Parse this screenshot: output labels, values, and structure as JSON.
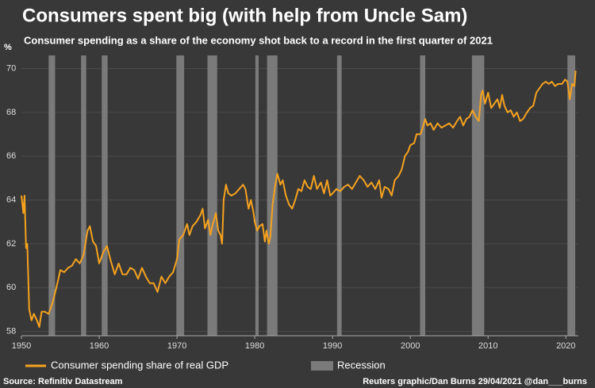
{
  "chart_data": {
    "type": "line",
    "title": "Consumers spent big (with help from Uncle Sam)",
    "subtitle": "Consumer spending as a share of the economy shot back to a record in the first quarter of 2021",
    "y_unit": "%",
    "source": "Source: Refinitiv Datastream",
    "credit": "Reuters graphic/Dan Burns 29/04/2021 @dan___burns",
    "recession_label": "Recession",
    "recession_color": "#7a7a7a",
    "recessions": [
      [
        1953.5,
        1954.33
      ],
      [
        1957.67,
        1958.33
      ],
      [
        1960.33,
        1961.08
      ],
      [
        1969.92,
        1970.92
      ],
      [
        1973.92,
        1975.17
      ],
      [
        1980.08,
        1980.5
      ],
      [
        1981.58,
        1982.92
      ],
      [
        1990.58,
        1991.17
      ],
      [
        2001.25,
        2001.92
      ],
      [
        2007.92,
        2009.5
      ],
      [
        2020.2,
        2021.2
      ]
    ],
    "xlim": [
      1950,
      2021.6
    ],
    "xticks": [
      1950,
      1960,
      1970,
      1980,
      1990,
      2000,
      2010,
      2020
    ],
    "ylim": [
      57.8,
      70.6
    ],
    "yticks": [
      58,
      60,
      62,
      64,
      66,
      68,
      70
    ],
    "grid": true,
    "x": [
      1950.0,
      1950.25,
      1950.4,
      1950.6,
      1950.75,
      1951.0,
      1951.3,
      1951.6,
      1952.0,
      1952.3,
      1952.6,
      1953.0,
      1953.5,
      1954.0,
      1954.5,
      1955.0,
      1955.5,
      1956.0,
      1956.5,
      1957.0,
      1957.5,
      1958.0,
      1958.5,
      1958.8,
      1959.2,
      1959.6,
      1960.0,
      1960.5,
      1961.0,
      1961.5,
      1962.0,
      1962.5,
      1963.0,
      1963.5,
      1964.0,
      1964.5,
      1965.0,
      1965.5,
      1966.0,
      1966.5,
      1967.0,
      1967.5,
      1968.0,
      1968.5,
      1969.0,
      1969.5,
      1970.0,
      1970.3,
      1970.8,
      1971.3,
      1971.6,
      1972.0,
      1972.5,
      1973.0,
      1973.3,
      1973.6,
      1974.0,
      1974.3,
      1974.6,
      1975.0,
      1975.3,
      1975.6,
      1975.8,
      1976.0,
      1976.3,
      1976.6,
      1977.0,
      1977.5,
      1978.0,
      1978.5,
      1978.8,
      1979.2,
      1979.5,
      1979.8,
      1980.0,
      1980.3,
      1980.6,
      1981.0,
      1981.3,
      1981.5,
      1981.8,
      1982.0,
      1982.3,
      1982.6,
      1982.9,
      1983.3,
      1983.6,
      1984.0,
      1984.4,
      1984.8,
      1985.2,
      1985.6,
      1986.0,
      1986.4,
      1986.8,
      1987.2,
      1987.6,
      1988.0,
      1988.5,
      1988.9,
      1989.3,
      1989.7,
      1990.0,
      1990.5,
      1991.0,
      1991.5,
      1992.0,
      1992.5,
      1993.0,
      1993.5,
      1994.0,
      1994.5,
      1995.0,
      1995.5,
      1996.0,
      1996.3,
      1996.7,
      1997.2,
      1997.6,
      1998.0,
      1998.5,
      1998.9,
      1999.3,
      1999.7,
      2000.0,
      2000.5,
      2000.8,
      2001.3,
      2001.6,
      2001.9,
      2002.2,
      2002.6,
      2003.0,
      2003.5,
      2004.0,
      2004.5,
      2005.0,
      2005.5,
      2006.0,
      2006.4,
      2006.8,
      2007.2,
      2007.6,
      2008.0,
      2008.4,
      2008.8,
      2009.1,
      2009.3,
      2009.6,
      2010.0,
      2010.4,
      2010.8,
      2011.2,
      2011.5,
      2011.8,
      2012.1,
      2012.5,
      2012.9,
      2013.3,
      2013.7,
      2014.1,
      2014.5,
      2015.0,
      2015.4,
      2015.8,
      2016.2,
      2016.6,
      2017.0,
      2017.4,
      2017.8,
      2018.2,
      2018.6,
      2019.0,
      2019.5,
      2019.9,
      2020.2,
      2020.5,
      2020.8,
      2021.1,
      2021.25
    ],
    "series": [
      {
        "name": "Consumer spending share of real GDP",
        "color": "#f5a21f",
        "values": [
          64.2,
          63.4,
          64.2,
          61.8,
          62.0,
          59.0,
          58.5,
          58.8,
          58.5,
          58.2,
          58.9,
          58.9,
          58.8,
          59.3,
          60.0,
          60.8,
          60.7,
          60.9,
          61.0,
          61.3,
          61.1,
          61.5,
          62.6,
          62.8,
          62.1,
          61.9,
          61.1,
          61.6,
          61.9,
          61.2,
          60.6,
          61.1,
          60.6,
          60.6,
          60.9,
          60.8,
          60.4,
          60.9,
          60.5,
          60.2,
          60.2,
          59.8,
          60.5,
          60.2,
          60.5,
          60.7,
          61.3,
          62.2,
          62.4,
          62.9,
          62.4,
          62.8,
          63.0,
          63.3,
          63.6,
          62.7,
          63.1,
          62.4,
          62.9,
          63.4,
          62.6,
          62.4,
          62.0,
          64.0,
          64.7,
          64.3,
          64.2,
          64.3,
          64.5,
          64.7,
          64.5,
          63.6,
          64.0,
          63.5,
          63.0,
          62.6,
          62.8,
          62.9,
          62.1,
          62.6,
          62.0,
          62.3,
          63.8,
          64.6,
          65.2,
          64.7,
          64.9,
          64.2,
          63.8,
          63.6,
          64.0,
          64.5,
          64.4,
          64.9,
          64.6,
          64.5,
          65.1,
          64.5,
          64.8,
          64.3,
          64.9,
          64.2,
          64.3,
          64.5,
          64.4,
          64.6,
          64.7,
          64.5,
          64.8,
          65.1,
          64.9,
          64.6,
          64.8,
          64.5,
          64.9,
          64.1,
          64.6,
          64.5,
          64.2,
          64.9,
          65.1,
          65.4,
          66.0,
          66.2,
          66.5,
          66.6,
          67.0,
          67.0,
          67.3,
          67.7,
          67.4,
          67.5,
          67.2,
          67.5,
          67.3,
          67.4,
          67.5,
          67.3,
          67.6,
          67.8,
          67.4,
          67.7,
          67.8,
          68.1,
          67.8,
          67.6,
          68.8,
          69.0,
          68.4,
          68.9,
          68.2,
          68.4,
          68.6,
          68.2,
          68.8,
          68.3,
          68.0,
          68.1,
          67.8,
          68.0,
          67.6,
          67.7,
          68.0,
          68.2,
          68.3,
          68.9,
          69.1,
          69.3,
          69.4,
          69.3,
          69.4,
          69.2,
          69.3,
          69.3,
          69.5,
          69.4,
          68.6,
          69.3,
          69.2,
          69.9
        ]
      }
    ]
  }
}
